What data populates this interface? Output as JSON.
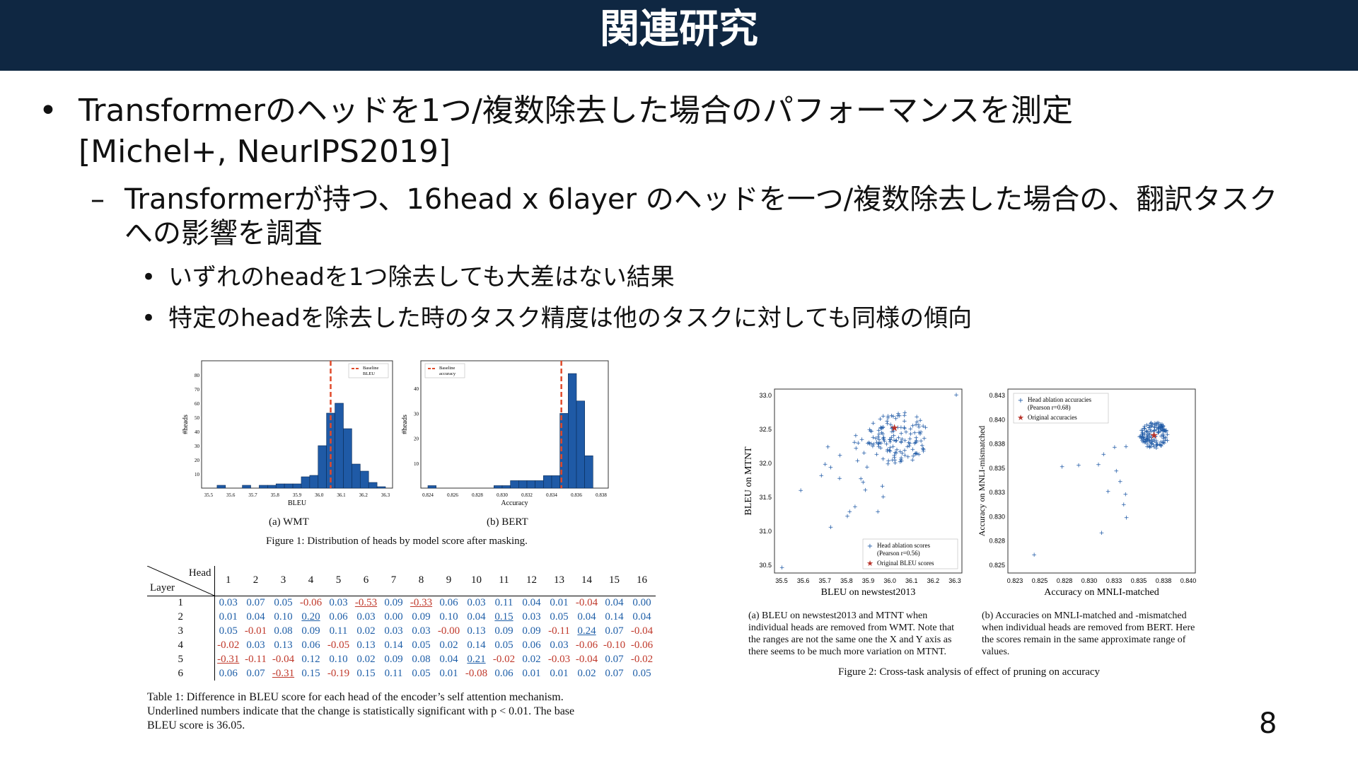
{
  "slide": {
    "title": "関連研究",
    "page_number": "8",
    "bullets": {
      "level1": {
        "marker": "•",
        "line1": "Transformerのヘッドを1つ/複数除去した場合のパフォーマンスを測定",
        "line2": "[Michel+, NeurIPS2019]"
      },
      "level2": {
        "marker": "–",
        "line1": "Transformerが持つ、16head x 6layer のヘッドを一つ/複数除去した場合の、翻訳タスク",
        "line2": "への影響を調査"
      },
      "level3": [
        {
          "marker": "•",
          "text": "いずれのheadを1つ除去しても大差はない結果"
        },
        {
          "marker": "•",
          "text": "特定のheadを除去した時のタスク精度は他のタスクに対しても同様の傾向"
        }
      ]
    }
  },
  "figure1": {
    "caption": "Figure 1:  Distribution of heads by model score after masking.",
    "panels": [
      {
        "sublabel": "(a)  WMT",
        "ylabel": "#heads",
        "xlabel": "BLEU",
        "legend": [
          "Baseline",
          "BLEU"
        ],
        "xticks": [
          "35.5",
          "35.6",
          "35.7",
          "35.8",
          "35.9",
          "36.0",
          "36.1",
          "36.2",
          "36.3"
        ],
        "yticks": [
          "10",
          "20",
          "30",
          "40",
          "50",
          "60",
          "70",
          "80"
        ]
      },
      {
        "sublabel": "(b)  BERT",
        "ylabel": "#heads",
        "xlabel": "Accuracy",
        "legend": [
          "Baseline",
          "accuracy"
        ],
        "xticks": [
          "0.824",
          "0.826",
          "0.828",
          "0.830",
          "0.832",
          "0.834",
          "0.836",
          "0.838"
        ],
        "yticks": [
          "10",
          "20",
          "30",
          "40"
        ]
      }
    ]
  },
  "figure2": {
    "caption": "Figure 2: Cross-task analysis of effect of pruning on accuracy",
    "panels": [
      {
        "ylabel": "BLEU on MTNT",
        "xlabel": "BLEU on newstest2013",
        "xticks": [
          "35.5",
          "35.6",
          "35.7",
          "35.8",
          "35.9",
          "36.0",
          "36.1",
          "36.2",
          "36.3"
        ],
        "yticks": [
          "33.0",
          "32.5",
          "32.0",
          "31.5",
          "31.0",
          "30.5"
        ],
        "legend": [
          "Head ablation scores",
          "(Pearson r=0.56)",
          "Original BLEU scores"
        ],
        "caption_lines": [
          "(a)  BLEU on newstest2013 and MTNT when",
          "individual heads are removed from WMT. Note that",
          "the ranges are not the same one the X and Y axis as",
          "there seems to be much more variation on MTNT."
        ]
      },
      {
        "ylabel": "Accuracy on MNLI-mismatched",
        "xlabel": "Accuracy on MNLI-matched",
        "xticks": [
          "0.823",
          "0.825",
          "0.828",
          "0.830",
          "0.833",
          "0.835",
          "0.838",
          "0.840"
        ],
        "yticks": [
          "0.843",
          "0.840",
          "0.838",
          "0.835",
          "0.833",
          "0.830",
          "0.828",
          "0.825"
        ],
        "legend": [
          "Head ablation accuracies",
          "(Pearson r=0.68)",
          "Original accuracies"
        ],
        "caption_lines": [
          "(b)  Accuracies on MNLI-matched and -mismatched",
          "when individual heads are removed from BERT. Here",
          "the scores remain in the same approximate range of",
          "values."
        ]
      }
    ]
  },
  "table1": {
    "corner_head": "Head",
    "corner_layer": "Layer",
    "heads": [
      "1",
      "2",
      "3",
      "4",
      "5",
      "6",
      "7",
      "8",
      "9",
      "10",
      "11",
      "12",
      "13",
      "14",
      "15",
      "16"
    ],
    "rows": [
      {
        "layer": "1",
        "cells": [
          "0.03",
          "0.07",
          "0.05",
          "-0.06",
          "0.03",
          "-0.53",
          "0.09",
          "-0.33",
          "0.06",
          "0.03",
          "0.11",
          "0.04",
          "0.01",
          "-0.04",
          "0.04",
          "0.00"
        ]
      },
      {
        "layer": "2",
        "cells": [
          "0.01",
          "0.04",
          "0.10",
          "0.20",
          "0.06",
          "0.03",
          "0.00",
          "0.09",
          "0.10",
          "0.04",
          "0.15",
          "0.03",
          "0.05",
          "0.04",
          "0.14",
          "0.04"
        ]
      },
      {
        "layer": "3",
        "cells": [
          "0.05",
          "-0.01",
          "0.08",
          "0.09",
          "0.11",
          "0.02",
          "0.03",
          "0.03",
          "-0.00",
          "0.13",
          "0.09",
          "0.09",
          "-0.11",
          "0.24",
          "0.07",
          "-0.04"
        ]
      },
      {
        "layer": "4",
        "cells": [
          "-0.02",
          "0.03",
          "0.13",
          "0.06",
          "-0.05",
          "0.13",
          "0.14",
          "0.05",
          "0.02",
          "0.14",
          "0.05",
          "0.06",
          "0.03",
          "-0.06",
          "-0.10",
          "-0.06"
        ]
      },
      {
        "layer": "5",
        "cells": [
          "-0.31",
          "-0.11",
          "-0.04",
          "0.12",
          "0.10",
          "0.02",
          "0.09",
          "0.08",
          "0.04",
          "0.21",
          "-0.02",
          "0.02",
          "-0.03",
          "-0.04",
          "0.07",
          "-0.02"
        ]
      },
      {
        "layer": "6",
        "cells": [
          "0.06",
          "0.07",
          "-0.31",
          "0.15",
          "-0.19",
          "0.15",
          "0.11",
          "0.05",
          "0.01",
          "-0.08",
          "0.06",
          "0.01",
          "0.01",
          "0.02",
          "0.07",
          "0.05"
        ]
      }
    ],
    "significant": [
      "1-6",
      "1-8",
      "2-4",
      "2-11",
      "3-14",
      "5-1",
      "5-10",
      "6-3"
    ],
    "caption_lines": [
      "Table 1:   Difference in BLEU score for each head of the encoder’s self attention mechanism.",
      "Underlined numbers indicate that the change is statistically significant with p < 0.01.  The base",
      "BLEU score is 36.05."
    ]
  },
  "colors": {
    "title_bar": "#0f2742",
    "bar": "#1f5aa6",
    "baseline": "#e04a2a",
    "positive": "#1f5fa8",
    "negative": "#c0392b"
  }
}
